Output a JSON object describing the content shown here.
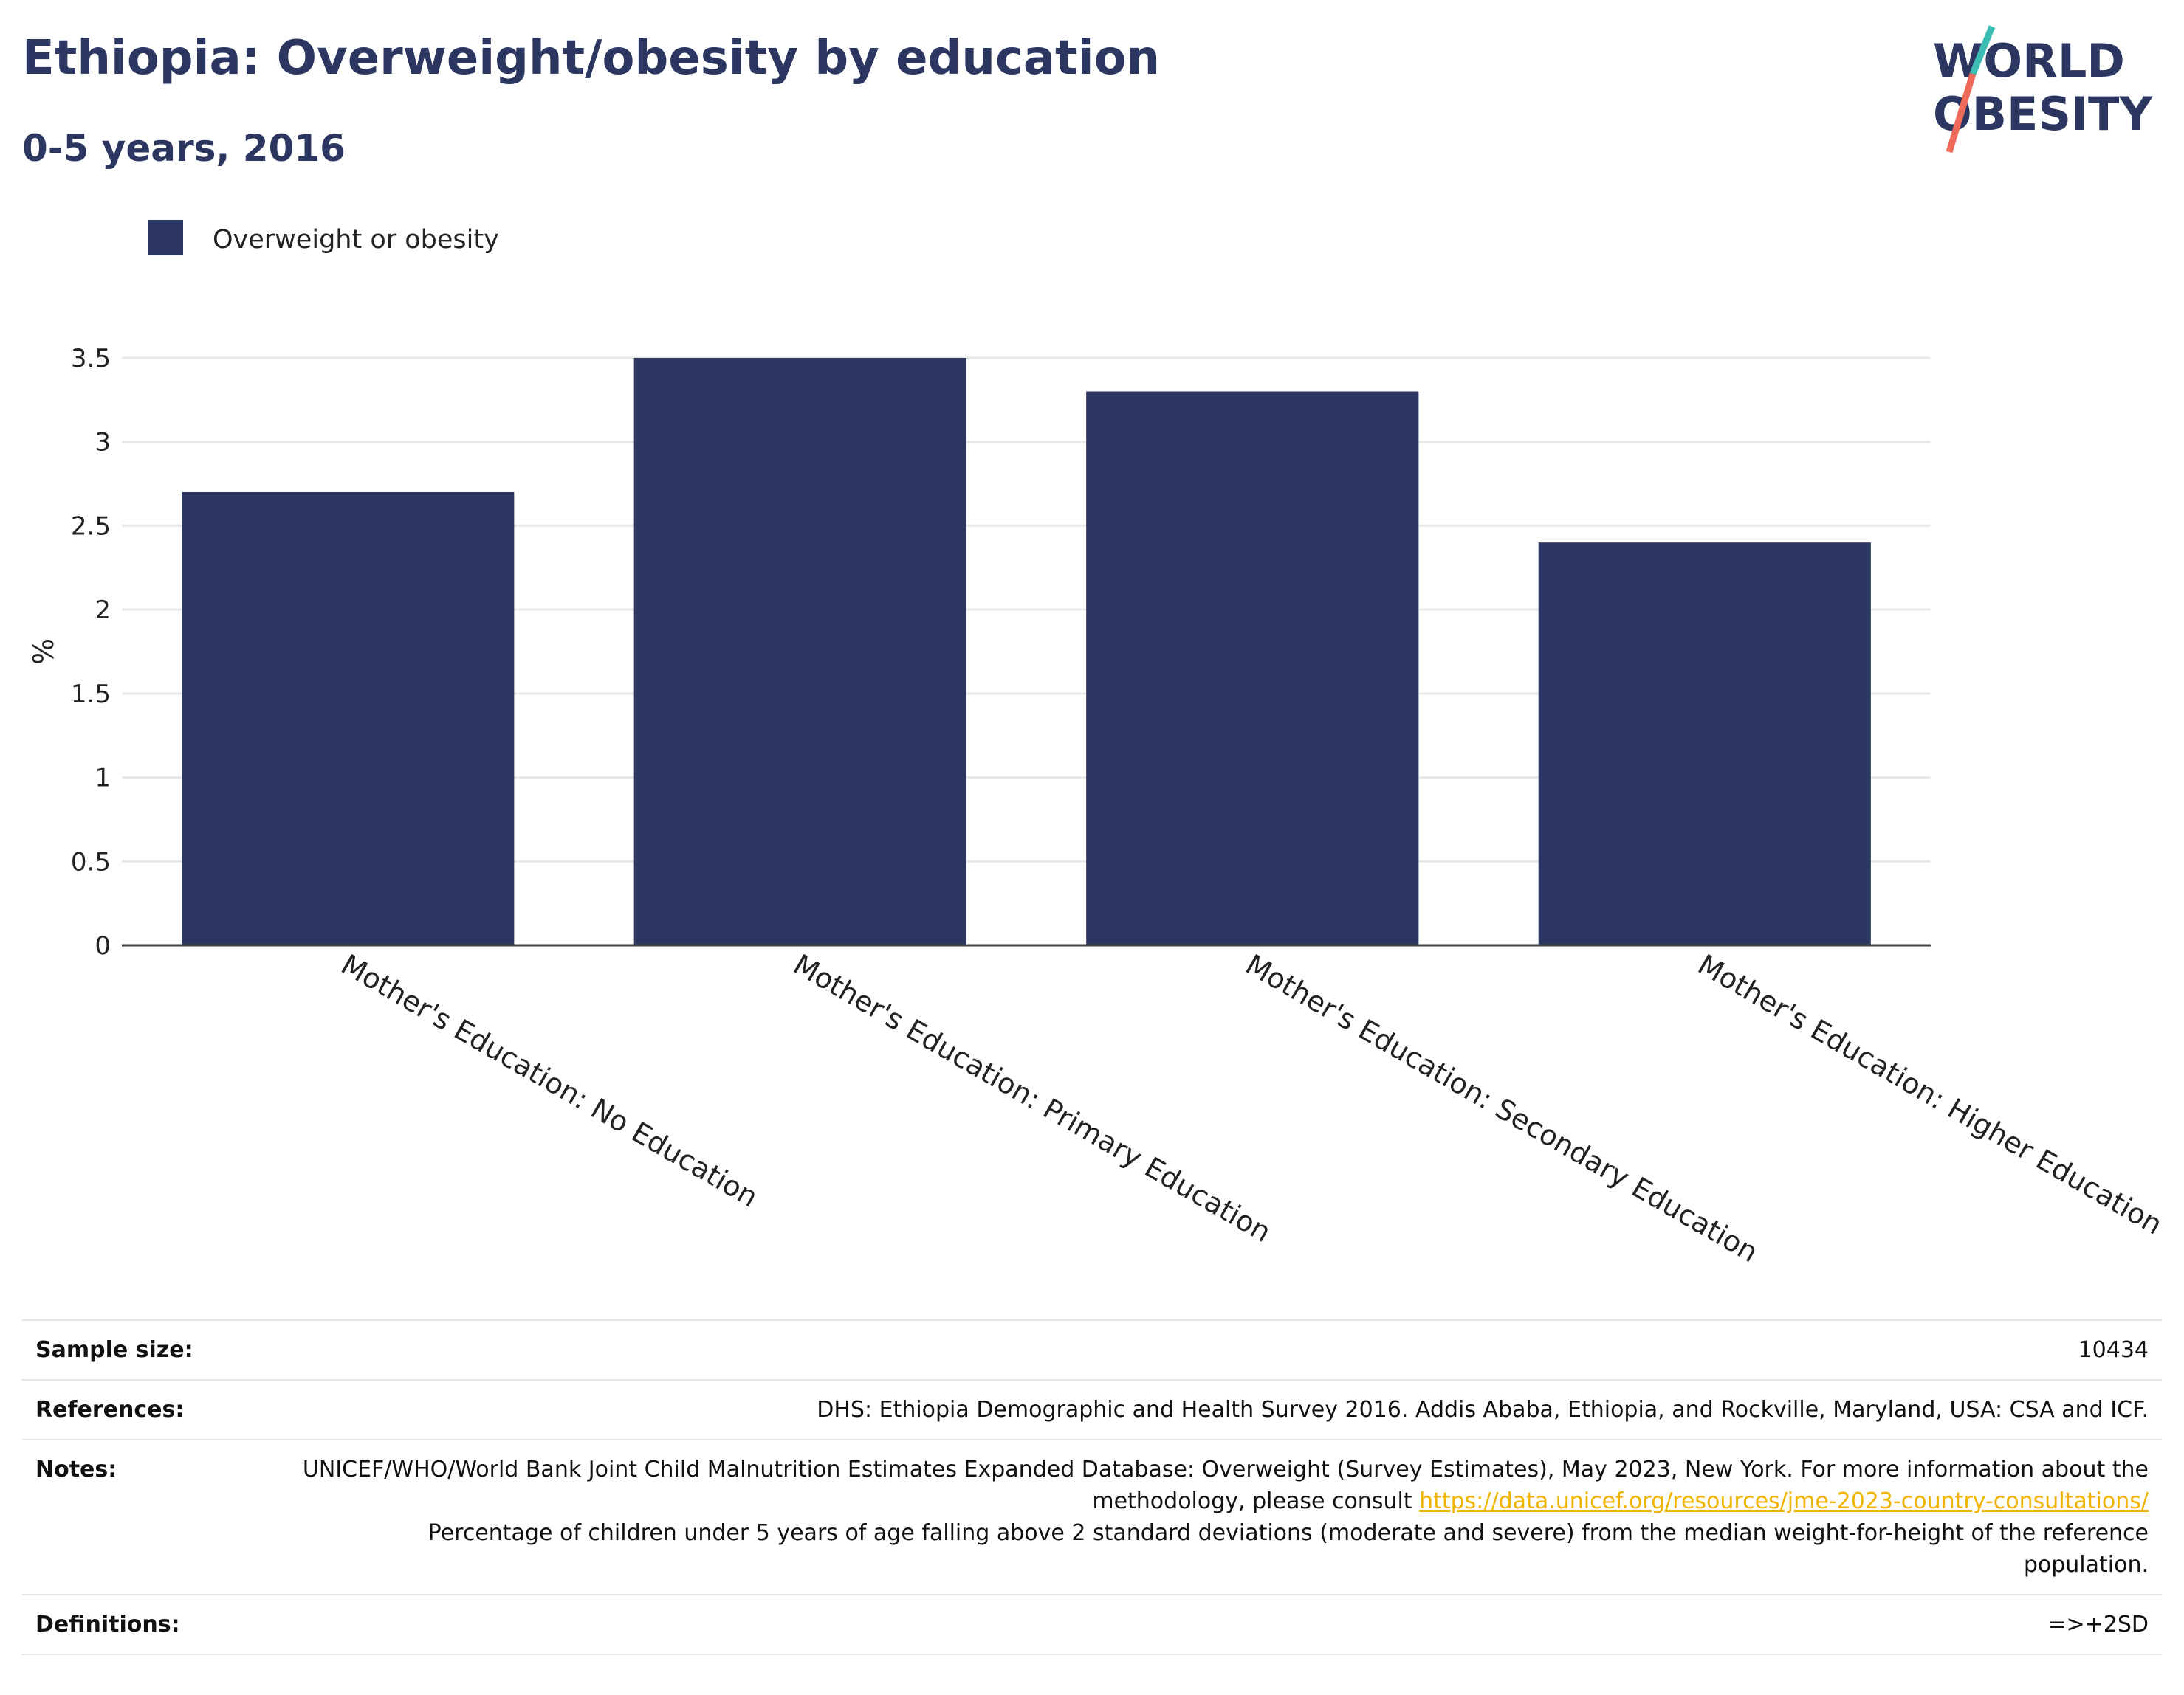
{
  "header": {
    "title": "Ethiopia: Overweight/obesity by education",
    "subtitle": "0-5 years, 2016",
    "logo_line1": "WORLD",
    "logo_line2": "OBESITY"
  },
  "colors": {
    "bar": "#2b3661",
    "title": "#2b3661",
    "logo_teal": "#3bbdb4",
    "logo_coral": "#ee6b5b",
    "link": "#f0b400"
  },
  "chart_data": {
    "type": "bar",
    "categories": [
      "Mother's Education: No Education",
      "Mother's Education: Primary Education",
      "Mother's Education: Secondary Education",
      "Mother's Education: Higher Education"
    ],
    "series": [
      {
        "name": "Overweight or obesity",
        "values": [
          2.7,
          3.5,
          3.3,
          2.4
        ]
      }
    ],
    "ylabel": "%",
    "ylim": [
      0,
      3.5
    ],
    "yticks": [
      0,
      0.5,
      1,
      1.5,
      2,
      2.5,
      3,
      3.5
    ],
    "ytick_labels": [
      "0",
      "0.5",
      "1",
      "1.5",
      "2",
      "2.5",
      "3",
      "3.5"
    ],
    "grid": true,
    "legend": "top-left"
  },
  "meta": {
    "sample_size_label": "Sample size:",
    "sample_size_value": "10434",
    "references_label": "References:",
    "references_value": "DHS: Ethiopia Demographic and Health Survey 2016. Addis Ababa, Ethiopia, and Rockville, Maryland, USA: CSA and ICF.",
    "notes_label": "Notes:",
    "notes_text_1": "UNICEF/WHO/World Bank Joint Child Malnutrition Estimates Expanded Database: Overweight (Survey Estimates), May 2023, New York. For more information about the methodology, please consult ",
    "notes_link": "https://data.unicef.org/resources/jme-2023-country-consultations/",
    "notes_text_2": "Percentage of children under 5 years of age falling above 2 standard deviations (moderate and severe) from the median weight-for-height of the reference population.",
    "definitions_label": "Definitions:",
    "definitions_value": "=>+2SD"
  }
}
